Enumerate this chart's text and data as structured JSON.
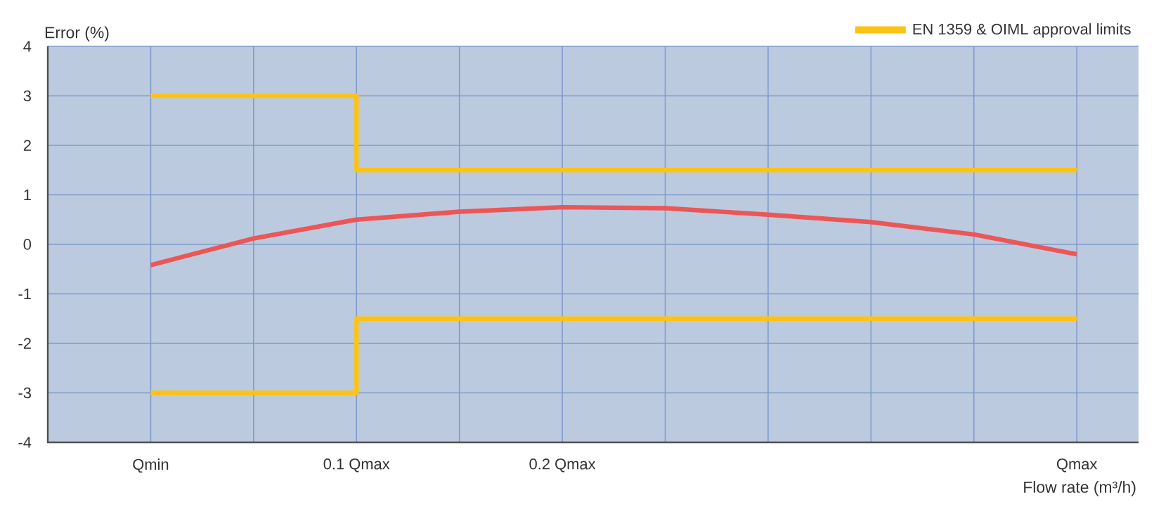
{
  "chart_data": {
    "type": "line",
    "xlabel": "Flow rate (m³/h)",
    "ylabel": "Error (%)",
    "categories": [
      "Qmin",
      null,
      "0.1 Qmax",
      null,
      "0.2 Qmax",
      null,
      null,
      null,
      null,
      "Qmax"
    ],
    "ylim": [
      -4,
      4
    ],
    "yticks": [
      -4,
      -3,
      -2,
      -1,
      0,
      1,
      2,
      3,
      4
    ],
    "grid": true,
    "legend": "top right",
    "line_style": "solid",
    "marker": "none",
    "series": [
      {
        "name": "EN 1359 & OIML approval limits",
        "type": "step",
        "color": "#fdc314",
        "values": [
          3,
          3,
          1.5,
          1.5,
          1.5,
          1.5,
          1.5,
          1.5,
          1.5,
          1.5
        ]
      },
      {
        "type": "step",
        "color": "#fdc314",
        "values": [
          -3,
          -3,
          -1.5,
          -1.5,
          -1.5,
          -1.5,
          -1.5,
          -1.5,
          -1.5,
          -1.5
        ]
      },
      {
        "color": "#ec5656",
        "values": [
          -0.42,
          0.12,
          0.5,
          0.66,
          0.75,
          0.73,
          0.6,
          0.45,
          0.2,
          -0.2
        ]
      }
    ]
  }
}
